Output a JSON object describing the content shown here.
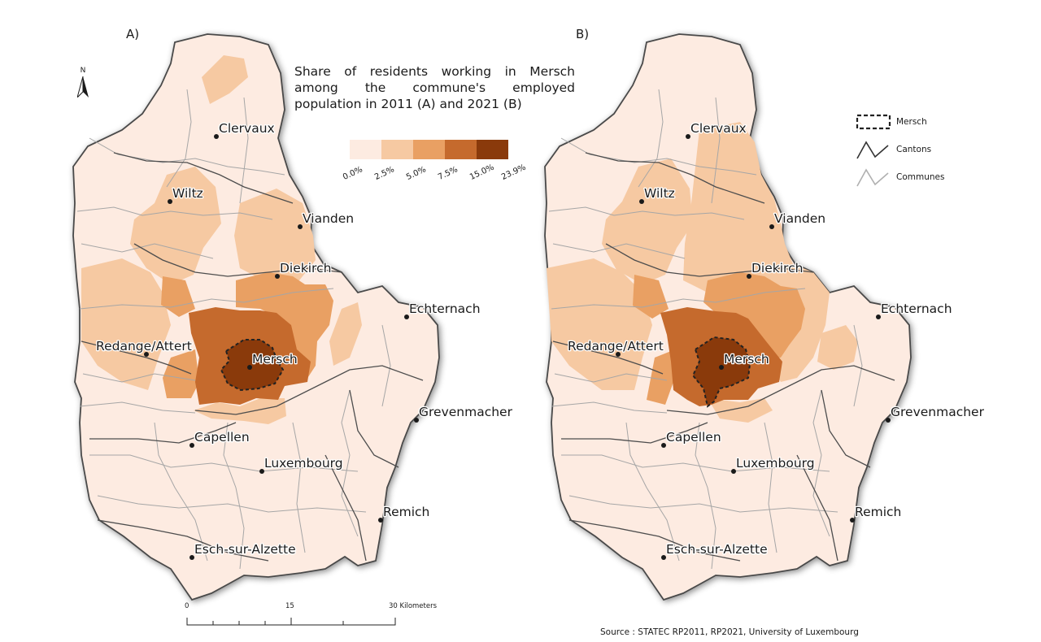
{
  "panels": [
    {
      "label": "A)"
    },
    {
      "label": "B)"
    }
  ],
  "north_label": "N",
  "title": "Share of residents working in Mersch among the commune's employed population in 2011 (A) and 2021 (B)",
  "legend": {
    "classes": [
      {
        "color": "#fdebe1"
      },
      {
        "color": "#f6c9a2"
      },
      {
        "color": "#e9a063"
      },
      {
        "color": "#c56a2d"
      },
      {
        "color": "#8a3a0b"
      }
    ],
    "ticks": [
      "0.0%",
      "2.5%",
      "5.0%",
      "7.5%",
      "15.0%",
      "23.9%"
    ]
  },
  "key": [
    {
      "label": "Mersch",
      "icon": "dashed-boundary-icon"
    },
    {
      "label": "Cantons",
      "icon": "canton-line-icon"
    },
    {
      "label": "Communes",
      "icon": "commune-line-icon"
    }
  ],
  "towns": [
    "Clervaux",
    "Wiltz",
    "Vianden",
    "Diekirch",
    "Echternach",
    "Redange/Attert",
    "Mersch",
    "Grevenmacher",
    "Capellen",
    "Luxembourg",
    "Remich",
    "Esch-sur-Alzette"
  ],
  "scale": {
    "ticks": [
      "0",
      "15",
      "30 Kilometers"
    ]
  },
  "source": "Source : STATEC RP2011, RP2021, University of Luxembourg"
}
